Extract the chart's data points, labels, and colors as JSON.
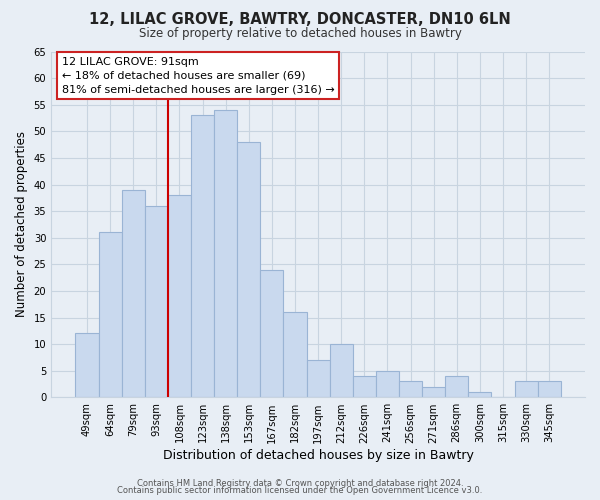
{
  "title1": "12, LILAC GROVE, BAWTRY, DONCASTER, DN10 6LN",
  "title2": "Size of property relative to detached houses in Bawtry",
  "xlabel": "Distribution of detached houses by size in Bawtry",
  "ylabel": "Number of detached properties",
  "bar_labels": [
    "49sqm",
    "64sqm",
    "79sqm",
    "93sqm",
    "108sqm",
    "123sqm",
    "138sqm",
    "153sqm",
    "167sqm",
    "182sqm",
    "197sqm",
    "212sqm",
    "226sqm",
    "241sqm",
    "256sqm",
    "271sqm",
    "286sqm",
    "300sqm",
    "315sqm",
    "330sqm",
    "345sqm"
  ],
  "bar_values": [
    12,
    31,
    39,
    36,
    38,
    53,
    54,
    48,
    24,
    16,
    7,
    10,
    4,
    5,
    3,
    2,
    4,
    1,
    0,
    3,
    3
  ],
  "bar_color": "#c9d9ee",
  "bar_edge_color": "#9ab4d4",
  "vline_x_index": 3,
  "vline_color": "#cc0000",
  "ylim": [
    0,
    65
  ],
  "yticks": [
    0,
    5,
    10,
    15,
    20,
    25,
    30,
    35,
    40,
    45,
    50,
    55,
    60,
    65
  ],
  "annotation_title": "12 LILAC GROVE: 91sqm",
  "annotation_line1": "← 18% of detached houses are smaller (69)",
  "annotation_line2": "81% of semi-detached houses are larger (316) →",
  "footer1": "Contains HM Land Registry data © Crown copyright and database right 2024.",
  "footer2": "Contains public sector information licensed under the Open Government Licence v3.0.",
  "background_color": "#e8eef5",
  "grid_color": "#c8d4e0",
  "plot_bg_color": "#e8eef5"
}
